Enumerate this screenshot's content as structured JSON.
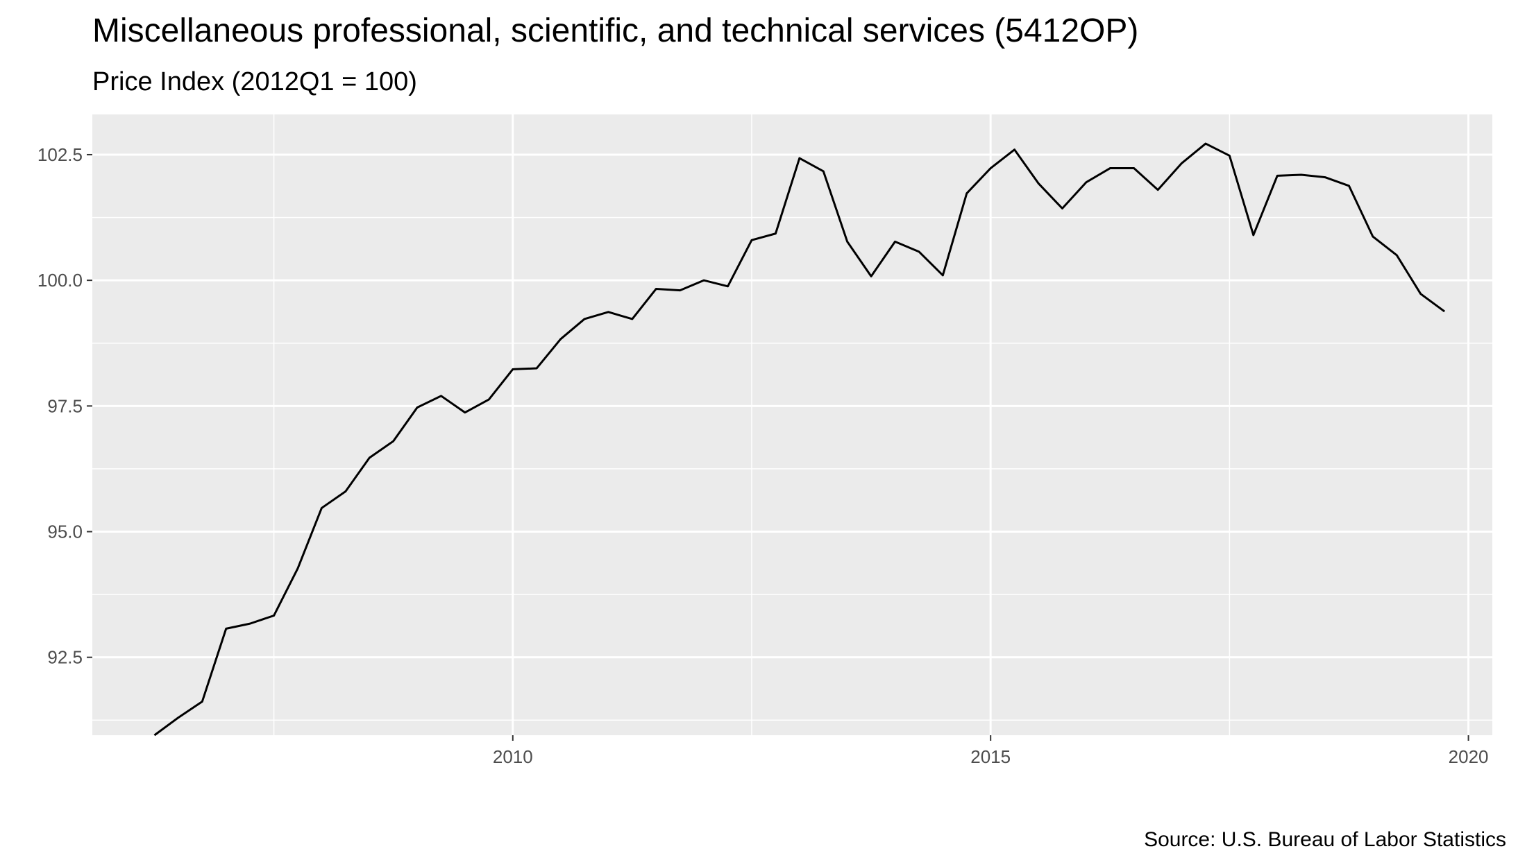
{
  "chart_data": {
    "type": "line",
    "title": "Miscellaneous professional, scientific, and technical services (5412OP)",
    "subtitle": "Price Index (2012Q1 = 100)",
    "caption": "Source: U.S. Bureau of Labor Statistics",
    "xlabel": "",
    "ylabel": "",
    "xlim": [
      2005.6,
      2020.25
    ],
    "ylim": [
      90.95,
      103.3
    ],
    "x_ticks": [
      2010,
      2015,
      2020
    ],
    "x_tick_labels": [
      "2010",
      "2015",
      "2020"
    ],
    "y_ticks": [
      92.5,
      95.0,
      97.5,
      100.0,
      102.5
    ],
    "y_tick_labels": [
      "92.5",
      "95.0",
      "97.5",
      "100.0",
      "102.5"
    ],
    "grid": true,
    "legend": "none",
    "colors": {
      "panel_background": "#EBEBEB",
      "grid_line": "#FFFFFF",
      "series_line": "#000000",
      "tick_text": "#4D4D4D"
    },
    "series": [
      {
        "x": [
          2006.25,
          2006.5,
          2006.75,
          2007.0,
          2007.25,
          2007.5,
          2007.75,
          2008.0,
          2008.25,
          2008.5,
          2008.75,
          2009.0,
          2009.25,
          2009.5,
          2009.75,
          2010.0,
          2010.25,
          2010.5,
          2010.75,
          2011.0,
          2011.25,
          2011.5,
          2011.75,
          2012.0,
          2012.25,
          2012.5,
          2012.75,
          2013.0,
          2013.25,
          2013.5,
          2013.75,
          2014.0,
          2014.25,
          2014.5,
          2014.75,
          2015.0,
          2015.25,
          2015.5,
          2015.75,
          2016.0,
          2016.25,
          2016.5,
          2016.75,
          2017.0,
          2017.25,
          2017.5,
          2017.75,
          2018.0,
          2018.25,
          2018.5,
          2018.75,
          2019.0,
          2019.25,
          2019.5,
          2019.75
        ],
        "values": [
          90.95,
          91.3,
          91.62,
          93.07,
          93.17,
          93.33,
          94.27,
          95.47,
          95.8,
          96.47,
          96.8,
          97.47,
          97.7,
          97.37,
          97.63,
          98.23,
          98.25,
          98.83,
          99.23,
          99.37,
          99.23,
          99.83,
          99.8,
          100.0,
          99.88,
          100.8,
          100.93,
          102.43,
          102.17,
          100.77,
          100.08,
          100.77,
          100.57,
          100.1,
          101.73,
          102.23,
          102.6,
          101.93,
          101.43,
          101.95,
          102.23,
          102.23,
          101.8,
          102.33,
          102.72,
          102.48,
          100.9,
          102.08,
          102.1,
          102.05,
          101.88,
          100.87,
          100.5,
          99.73,
          99.38
        ]
      }
    ]
  }
}
